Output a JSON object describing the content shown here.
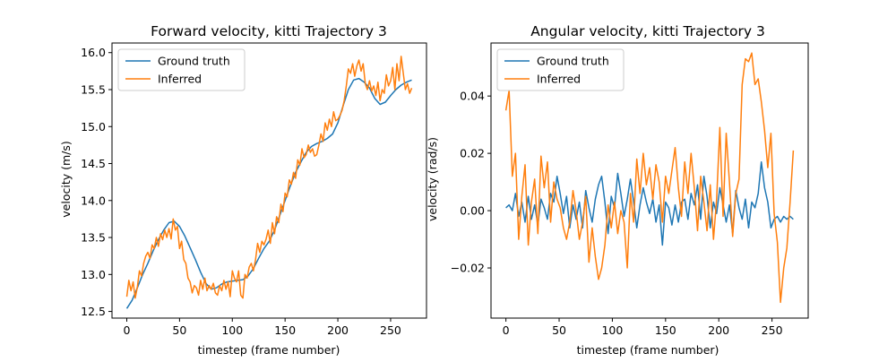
{
  "figure": {
    "background": "#ffffff"
  },
  "chart_data": [
    {
      "type": "line",
      "title": "Forward velocity, kitti Trajectory 3",
      "xlabel": "timestep (frame number)",
      "ylabel": "velocity (m/s)",
      "xlim": [
        -14,
        284
      ],
      "ylim": [
        12.41,
        16.13
      ],
      "xticks": [
        0,
        50,
        100,
        150,
        200,
        250
      ],
      "xtick_labels": [
        "0",
        "50",
        "100",
        "150",
        "200",
        "250"
      ],
      "yticks": [
        12.5,
        13.0,
        13.5,
        14.0,
        14.5,
        15.0,
        15.5,
        16.0
      ],
      "ytick_labels": [
        "12.5",
        "13.0",
        "13.5",
        "14.0",
        "14.5",
        "15.0",
        "15.5",
        "16.0"
      ],
      "grid": false,
      "legend_position": "upper-left",
      "series": [
        {
          "name": "Ground truth",
          "color": "#1f77b4",
          "x": [
            0,
            5,
            10,
            15,
            20,
            25,
            30,
            35,
            40,
            45,
            50,
            55,
            60,
            65,
            70,
            75,
            80,
            85,
            90,
            95,
            100,
            105,
            110,
            115,
            120,
            125,
            130,
            135,
            140,
            145,
            150,
            155,
            160,
            165,
            170,
            175,
            180,
            185,
            190,
            195,
            200,
            205,
            210,
            215,
            220,
            225,
            230,
            235,
            240,
            245,
            250,
            255,
            260,
            265,
            270
          ],
          "y": [
            12.54,
            12.65,
            12.82,
            13.0,
            13.15,
            13.32,
            13.47,
            13.6,
            13.7,
            13.72,
            13.65,
            13.52,
            13.36,
            13.2,
            13.03,
            12.88,
            12.8,
            12.82,
            12.87,
            12.9,
            12.91,
            12.92,
            12.93,
            12.98,
            13.08,
            13.22,
            13.35,
            13.45,
            13.6,
            13.8,
            14.0,
            14.2,
            14.38,
            14.52,
            14.65,
            14.73,
            14.77,
            14.8,
            14.84,
            14.9,
            15.05,
            15.28,
            15.5,
            15.63,
            15.65,
            15.6,
            15.52,
            15.38,
            15.3,
            15.33,
            15.42,
            15.5,
            15.56,
            15.6,
            15.63
          ]
        },
        {
          "name": "Inferred",
          "color": "#ff7f0e",
          "x": [
            0,
            2,
            4,
            6,
            8,
            10,
            12,
            14,
            16,
            18,
            20,
            22,
            24,
            26,
            28,
            30,
            32,
            34,
            36,
            38,
            40,
            42,
            44,
            46,
            48,
            50,
            52,
            54,
            56,
            58,
            60,
            62,
            64,
            66,
            68,
            70,
            72,
            74,
            76,
            78,
            80,
            82,
            84,
            86,
            88,
            90,
            92,
            94,
            96,
            98,
            100,
            102,
            104,
            106,
            108,
            110,
            112,
            114,
            116,
            118,
            120,
            122,
            124,
            126,
            128,
            130,
            132,
            134,
            136,
            138,
            140,
            142,
            144,
            146,
            148,
            150,
            152,
            154,
            156,
            158,
            160,
            162,
            164,
            166,
            168,
            170,
            172,
            174,
            176,
            178,
            180,
            182,
            184,
            186,
            188,
            190,
            192,
            194,
            196,
            198,
            200,
            202,
            204,
            206,
            208,
            210,
            212,
            214,
            216,
            218,
            220,
            222,
            224,
            226,
            228,
            230,
            232,
            234,
            236,
            238,
            240,
            242,
            244,
            246,
            248,
            250,
            252,
            254,
            256,
            258,
            260,
            262,
            264,
            266,
            268,
            270
          ],
          "y": [
            12.7,
            12.92,
            12.78,
            12.9,
            12.68,
            12.83,
            13.05,
            12.98,
            13.15,
            13.25,
            13.3,
            13.22,
            13.4,
            13.35,
            13.5,
            13.38,
            13.55,
            13.47,
            13.6,
            13.5,
            13.62,
            13.48,
            13.75,
            13.6,
            13.65,
            13.35,
            13.45,
            13.2,
            13.15,
            12.95,
            12.9,
            12.75,
            12.85,
            12.82,
            12.72,
            12.92,
            12.8,
            12.95,
            12.78,
            12.85,
            12.8,
            12.88,
            12.75,
            12.72,
            12.85,
            12.78,
            12.92,
            12.8,
            12.9,
            12.7,
            13.05,
            12.95,
            12.9,
            13.05,
            12.72,
            12.68,
            13.0,
            12.95,
            13.1,
            13.15,
            13.05,
            13.2,
            13.42,
            13.3,
            13.45,
            13.4,
            13.48,
            13.6,
            13.42,
            13.7,
            13.55,
            13.78,
            13.7,
            13.95,
            13.85,
            14.1,
            14.05,
            14.28,
            14.22,
            14.38,
            14.3,
            14.55,
            14.48,
            14.7,
            14.58,
            14.62,
            14.75,
            14.65,
            14.7,
            14.6,
            14.62,
            14.75,
            14.9,
            14.8,
            15.05,
            14.95,
            15.1,
            15.0,
            15.2,
            15.08,
            15.1,
            15.15,
            15.22,
            15.35,
            15.55,
            15.78,
            15.72,
            15.85,
            15.68,
            15.82,
            15.9,
            15.75,
            15.85,
            15.58,
            15.5,
            15.62,
            15.48,
            15.55,
            15.42,
            15.6,
            15.35,
            15.5,
            15.45,
            15.7,
            15.55,
            15.62,
            15.8,
            15.5,
            15.85,
            15.62,
            15.95,
            15.72,
            15.5,
            15.58,
            15.45,
            15.52
          ]
        }
      ]
    },
    {
      "type": "line",
      "title": "Angular velocity, kitti Trajectory 3",
      "xlabel": "timestep (frame number)",
      "ylabel": "velocity (rad/s)",
      "xlim": [
        -14,
        284
      ],
      "ylim": [
        -0.0375,
        0.0585
      ],
      "xticks": [
        0,
        50,
        100,
        150,
        200,
        250
      ],
      "xtick_labels": [
        "0",
        "50",
        "100",
        "150",
        "200",
        "250"
      ],
      "yticks": [
        -0.02,
        0.0,
        0.02,
        0.04
      ],
      "ytick_labels": [
        "−0.02",
        "0.00",
        "0.02",
        "0.04"
      ],
      "grid": false,
      "legend_position": "upper-left",
      "series": [
        {
          "name": "Ground truth",
          "color": "#1f77b4",
          "x": [
            0,
            3,
            6,
            9,
            12,
            15,
            18,
            21,
            24,
            27,
            30,
            33,
            36,
            39,
            42,
            45,
            48,
            51,
            54,
            57,
            60,
            63,
            66,
            69,
            72,
            75,
            78,
            81,
            84,
            87,
            90,
            93,
            96,
            99,
            102,
            105,
            108,
            111,
            114,
            117,
            120,
            123,
            126,
            129,
            132,
            135,
            138,
            141,
            144,
            147,
            150,
            153,
            156,
            159,
            162,
            165,
            168,
            171,
            174,
            177,
            180,
            183,
            186,
            189,
            192,
            195,
            198,
            201,
            204,
            207,
            210,
            213,
            216,
            219,
            222,
            225,
            228,
            231,
            234,
            237,
            240,
            243,
            246,
            249,
            252,
            255,
            258,
            261,
            264,
            267,
            270
          ],
          "y": [
            0.001,
            0.002,
            0.0,
            0.006,
            -0.002,
            0.003,
            -0.004,
            0.005,
            -0.003,
            0.002,
            -0.005,
            0.004,
            0.001,
            -0.003,
            0.006,
            0.003,
            0.012,
            0.006,
            -0.001,
            0.005,
            -0.006,
            0.002,
            -0.003,
            0.003,
            -0.006,
            0.007,
            0.001,
            -0.004,
            0.004,
            0.009,
            0.012,
            0.003,
            -0.008,
            0.005,
            0.001,
            0.013,
            0.006,
            -0.002,
            0.004,
            0.011,
            0.003,
            -0.006,
            0.002,
            0.008,
            0.003,
            -0.001,
            0.004,
            -0.004,
            0.002,
            -0.012,
            0.003,
            0.001,
            -0.005,
            0.002,
            -0.004,
            0.003,
            0.004,
            -0.003,
            0.006,
            0.002,
            0.009,
            -0.003,
            0.012,
            0.005,
            -0.006,
            0.003,
            -0.001,
            0.008,
            0.002,
            -0.004,
            0.002,
            -0.008,
            0.007,
            0.001,
            -0.003,
            0.004,
            -0.006,
            0.003,
            0.001,
            0.006,
            0.017,
            0.008,
            0.003,
            -0.006,
            -0.003,
            -0.002,
            -0.004,
            -0.002,
            -0.003,
            -0.002,
            -0.003
          ]
        },
        {
          "name": "Inferred",
          "color": "#ff7f0e",
          "x": [
            0,
            3,
            6,
            9,
            12,
            15,
            18,
            21,
            24,
            27,
            30,
            33,
            36,
            39,
            42,
            45,
            48,
            51,
            54,
            57,
            60,
            63,
            66,
            69,
            72,
            75,
            78,
            81,
            84,
            87,
            90,
            93,
            96,
            99,
            102,
            105,
            108,
            111,
            114,
            117,
            120,
            123,
            126,
            129,
            132,
            135,
            138,
            141,
            144,
            147,
            150,
            153,
            156,
            159,
            162,
            165,
            168,
            171,
            174,
            177,
            180,
            183,
            186,
            189,
            192,
            195,
            198,
            201,
            204,
            207,
            210,
            213,
            216,
            219,
            222,
            225,
            228,
            231,
            234,
            237,
            240,
            243,
            246,
            249,
            252,
            255,
            258,
            261,
            264,
            267,
            270
          ],
          "y": [
            0.035,
            0.042,
            0.012,
            0.02,
            -0.01,
            0.005,
            0.016,
            -0.012,
            0.003,
            0.011,
            -0.008,
            0.019,
            0.008,
            0.017,
            -0.004,
            0.01,
            0.004,
            0.001,
            -0.006,
            -0.01,
            -0.004,
            0.007,
            0.0,
            -0.01,
            -0.004,
            0.005,
            -0.018,
            -0.006,
            -0.016,
            -0.024,
            -0.02,
            -0.012,
            0.002,
            -0.006,
            0.003,
            -0.008,
            0.0,
            -0.004,
            -0.02,
            0.006,
            -0.004,
            0.018,
            0.006,
            0.02,
            0.009,
            0.015,
            0.004,
            0.016,
            0.01,
            -0.004,
            0.012,
            0.006,
            0.014,
            0.022,
            0.008,
            -0.002,
            0.017,
            0.006,
            0.02,
            0.008,
            -0.007,
            0.012,
            0.003,
            -0.007,
            0.009,
            -0.01,
            0.004,
            0.029,
            -0.002,
            0.027,
            0.01,
            -0.009,
            0.006,
            0.011,
            0.044,
            0.053,
            0.052,
            0.055,
            0.044,
            0.046,
            0.038,
            0.028,
            0.015,
            0.027,
            -0.001,
            -0.011,
            -0.032,
            -0.02,
            -0.013,
            0.003,
            0.021
          ]
        }
      ]
    }
  ]
}
